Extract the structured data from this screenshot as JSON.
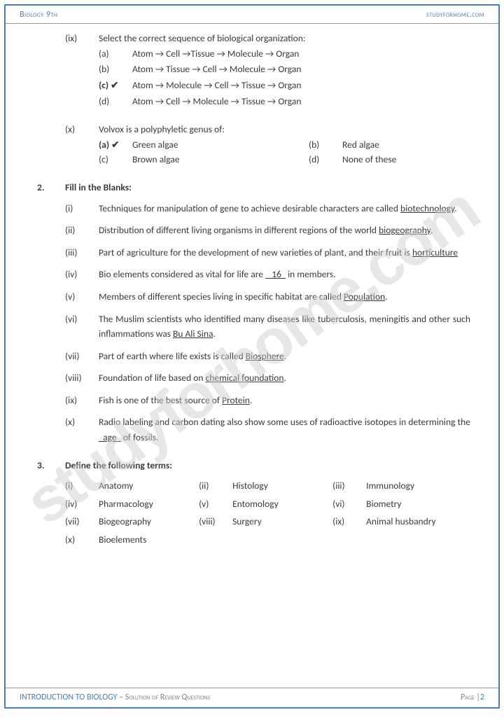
{
  "header": {
    "left": "Biology 9th",
    "right": "studyforhome.com"
  },
  "footer": {
    "left_blue": "INTRODUCTION TO BIOLOGY",
    "left_grey": " – Solution of Review Questions",
    "page_label": "Page |",
    "page_num": "2"
  },
  "watermark": "studyforhome.com",
  "q_ix": {
    "num": "(ix)",
    "text": "Select the correct sequence of biological organization:",
    "opts": [
      {
        "l": "(a)",
        "t": "Atom → Cell →Tissue → Molecule → Organ"
      },
      {
        "l": "(b)",
        "t": "Atom → Tissue → Cell → Molecule → Organ"
      },
      {
        "l": "(c) ✔",
        "t": "Atom → Molecule → Cell → Tissue → Organ"
      },
      {
        "l": "(d)",
        "t": "Atom → Cell → Molecule → Tissue → Organ"
      }
    ]
  },
  "q_x": {
    "num": "(x)",
    "text": "Volvox is a polyphyletic genus of:",
    "r1": {
      "al": "(a) ✔",
      "at": "Green algae",
      "bl": "(b)",
      "bt": "Red algae"
    },
    "r2": {
      "al": "(c)",
      "at": "Brown algae",
      "bl": "(d)",
      "bt": "None of these"
    }
  },
  "s2": {
    "num": "2.",
    "title": "Fill in the Blanks:",
    "items": [
      {
        "n": "(i)",
        "pre": "Techniques for manipulation of gene to achieve desirable characters are called ",
        "u": "biotechnology",
        "post": "."
      },
      {
        "n": "(ii)",
        "pre": "Distribution of different living organisms in different regions of the world ",
        "u": "biogeography",
        "post": "."
      },
      {
        "n": "(iii)",
        "pre": "Part of agriculture for the development of new varieties of plant, and their fruit is ",
        "u": "horticulture",
        "post": ""
      },
      {
        "n": "(iv)",
        "pre": "Bio elements considered as vital for life are ",
        "u": "   16  ",
        "post": " in members."
      },
      {
        "n": "(v)",
        "pre": "Members of different species living in specific habitat are called ",
        "u": "Population",
        "post": "."
      },
      {
        "n": "(vi)",
        "pre": "The Muslim scientists who identified many diseases like tuberculosis, meningitis and other such inflammations was ",
        "u": "Bu Ali Sina",
        "post": "."
      },
      {
        "n": "(vii)",
        "pre": "Part of earth where life exists is called ",
        "u": "Biosphere",
        "post": "."
      },
      {
        "n": "(viii)",
        "pre": "Foundation of life based on ",
        "u": "chemical foundation",
        "post": "."
      },
      {
        "n": "(ix)",
        "pre": "Fish is one of the best source of ",
        "u": "Protein",
        "post": "."
      },
      {
        "n": "(x)",
        "pre": "Radio labeling and carbon dating also show some uses of radioactive isotopes in determining the ",
        "u": "  age  ",
        "post": " of fossils."
      }
    ]
  },
  "s3": {
    "num": "3.",
    "title": "Define the following terms:",
    "terms": [
      {
        "n": "(i)",
        "t": "Anatomy"
      },
      {
        "n": "(ii)",
        "t": "Histology"
      },
      {
        "n": "(iii)",
        "t": "Immunology"
      },
      {
        "n": "(iv)",
        "t": "Pharmacology"
      },
      {
        "n": "(v)",
        "t": "Entomology"
      },
      {
        "n": "(vi)",
        "t": "Biometry"
      },
      {
        "n": "(vii)",
        "t": "Biogeography"
      },
      {
        "n": "(viii)",
        "t": "Surgery"
      },
      {
        "n": "(ix)",
        "t": "Animal husbandry"
      },
      {
        "n": "(x)",
        "t": "Bioelements"
      }
    ]
  }
}
